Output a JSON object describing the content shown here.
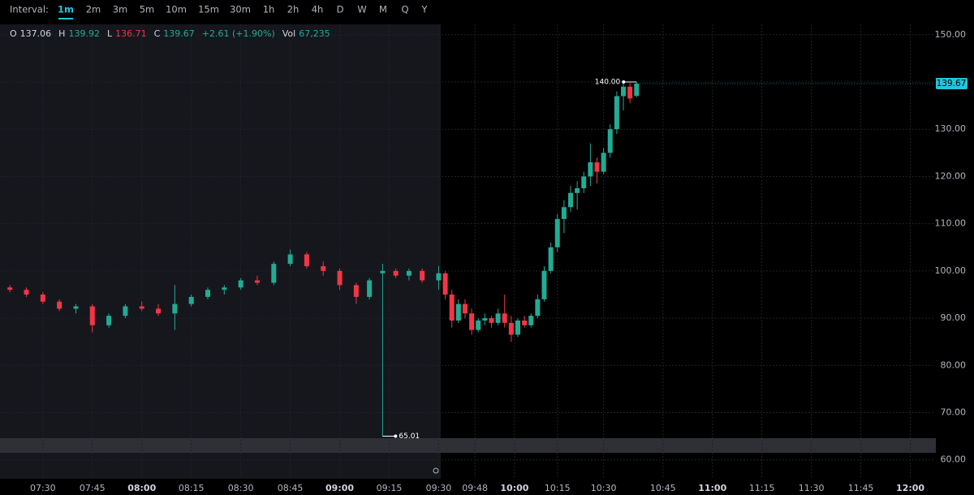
{
  "toolbar": {
    "label": "Interval:",
    "intervals": [
      "1m",
      "2m",
      "3m",
      "5m",
      "10m",
      "15m",
      "30m",
      "1h",
      "2h",
      "4h",
      "D",
      "W",
      "M",
      "Q",
      "Y"
    ],
    "active": 0
  },
  "ohlc_header": [
    {
      "key": "O",
      "value": "137.06",
      "color": "#d1d4dc"
    },
    {
      "key": "H",
      "value": "139.92",
      "color": "#22ab94"
    },
    {
      "key": "L",
      "value": "136.71",
      "color": "#f23645"
    },
    {
      "key": "C",
      "value": "139.67",
      "color": "#22ab94"
    },
    {
      "key": "",
      "value": "+2.61 (+1.90%)",
      "color": "#22ab94"
    },
    {
      "key": "Vol",
      "value": "67,235",
      "color": "#22ab94"
    }
  ],
  "chart_data": {
    "type": "candlestick",
    "up_color": "#22ab94",
    "down_color": "#f23645",
    "grid": true,
    "x": [
      -10,
      -5,
      0,
      5,
      10,
      15,
      20,
      25,
      30,
      35,
      40,
      45,
      50,
      55,
      60,
      65,
      70,
      75,
      80,
      85,
      90,
      95,
      99,
      103,
      107,
      111,
      115,
      120,
      122,
      124,
      126,
      128,
      130,
      132,
      134,
      136,
      138,
      140,
      142,
      144,
      146,
      148,
      150,
      152,
      154,
      156,
      158,
      160,
      162,
      164,
      166,
      168,
      170,
      172,
      174,
      176,
      178,
      180
    ],
    "open": [
      96.5,
      96,
      95,
      93.5,
      92,
      92.5,
      88.5,
      90.5,
      92.5,
      92,
      91,
      93,
      94.5,
      96,
      96.5,
      98,
      97.5,
      101.5,
      103.5,
      101,
      100,
      97,
      94.5,
      99.5,
      100,
      99,
      100,
      98,
      99.5,
      95,
      89.5,
      93,
      91,
      87.5,
      89.5,
      90,
      89,
      91,
      89,
      86.5,
      89.5,
      88.5,
      90.5,
      94,
      100,
      105,
      111,
      113.5,
      116.5,
      117.5,
      120,
      123,
      121,
      125,
      130,
      137,
      139,
      137.06
    ],
    "high": [
      97,
      96.5,
      95.5,
      94,
      93,
      93,
      91,
      93,
      93.5,
      93,
      97,
      95,
      96.5,
      97,
      98.5,
      99,
      102,
      104.5,
      104,
      102,
      100.5,
      97.5,
      98.5,
      101.5,
      100.5,
      100.5,
      100.5,
      101,
      100,
      96,
      94,
      94,
      92,
      90,
      91,
      90.5,
      92,
      95,
      90.5,
      90,
      90.5,
      91,
      95,
      101,
      106,
      112,
      115,
      118,
      119,
      121,
      127,
      124,
      126,
      131,
      138,
      140,
      139.8,
      139.92
    ],
    "low": [
      95.5,
      94.5,
      93,
      91.5,
      91,
      87,
      88,
      90,
      91.5,
      90.5,
      87.5,
      92.5,
      94,
      95,
      96,
      97,
      97,
      101,
      100.5,
      99,
      96,
      93,
      94,
      65.01,
      98.5,
      98,
      97.5,
      96,
      94,
      88,
      89,
      90,
      86.5,
      87,
      88.5,
      88,
      88.5,
      88,
      85,
      86,
      88,
      88,
      90,
      93.5,
      99.5,
      104,
      108,
      112.5,
      113,
      116.5,
      118,
      118.5,
      120.5,
      124,
      129,
      134,
      135.5,
      136.71
    ],
    "close": [
      96,
      95,
      93.5,
      92,
      92.5,
      88.5,
      90.5,
      92.5,
      92,
      91,
      93,
      94.5,
      96,
      96.5,
      98,
      97.5,
      101.5,
      103.5,
      101,
      100,
      97,
      94.5,
      98,
      100,
      99,
      100,
      98,
      99.5,
      95,
      89.5,
      93,
      91,
      87.5,
      89.5,
      90,
      89,
      91,
      89,
      86.5,
      89.5,
      88.5,
      90.5,
      94,
      100,
      105,
      111,
      113.5,
      116.5,
      117.5,
      120,
      123,
      121,
      125,
      130,
      137,
      139,
      136.5,
      139.67
    ],
    "xlim": [
      -13,
      270
    ],
    "xticks": [
      {
        "value": 0,
        "label": "07:30"
      },
      {
        "value": 15,
        "label": "07:45"
      },
      {
        "value": 30,
        "label": "08:00"
      },
      {
        "value": 45,
        "label": "08:15"
      },
      {
        "value": 60,
        "label": "08:30"
      },
      {
        "value": 75,
        "label": "08:45"
      },
      {
        "value": 90,
        "label": "09:00"
      },
      {
        "value": 105,
        "label": "09:15"
      },
      {
        "value": 120,
        "label": "09:30"
      },
      {
        "value": 131,
        "label": "09:48"
      },
      {
        "value": 143,
        "label": "10:00"
      },
      {
        "value": 156,
        "label": "10:15"
      },
      {
        "value": 170,
        "label": "10:30"
      },
      {
        "value": 188,
        "label": "10:45"
      },
      {
        "value": 203,
        "label": "11:00"
      },
      {
        "value": 218,
        "label": "11:15"
      },
      {
        "value": 233,
        "label": "11:30"
      },
      {
        "value": 248,
        "label": "11:45"
      },
      {
        "value": 263,
        "label": "12:00"
      }
    ],
    "ylim": [
      56,
      152.2
    ],
    "yticks": [
      {
        "value": 60,
        "label": "60.00"
      },
      {
        "value": 70,
        "label": "70.00"
      },
      {
        "value": 80,
        "label": "80.00"
      },
      {
        "value": 90,
        "label": "90.00"
      },
      {
        "value": 100,
        "label": "100.00"
      },
      {
        "value": 110,
        "label": "110.00"
      },
      {
        "value": 120,
        "label": "120.00"
      },
      {
        "value": 130,
        "label": "130.00"
      },
      {
        "value": 140,
        "label": "140.00"
      },
      {
        "value": 150,
        "label": "150.00"
      }
    ],
    "annotations": [
      {
        "x": 180,
        "value": 140,
        "label": "140.00",
        "side": "left"
      },
      {
        "x": 103,
        "value": 65.01,
        "side": "right"
      }
    ],
    "last_price": 139.67,
    "last_price_color": "#22c5e0"
  }
}
